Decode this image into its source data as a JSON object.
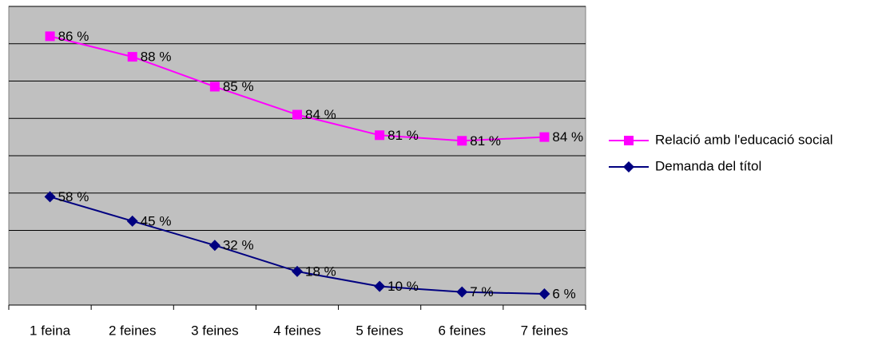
{
  "chart_data": {
    "type": "line",
    "stacked": true,
    "grid": true,
    "categories": [
      "1 feina",
      "2 feines",
      "3 feines",
      "4 feines",
      "5 feines",
      "6 feines",
      "7 feines"
    ],
    "series": [
      {
        "name": "Demanda del títol",
        "color": "#000080",
        "marker": "diamond",
        "values": [
          58,
          45,
          32,
          18,
          10,
          7,
          6
        ],
        "value_labels": [
          "58 %",
          "45 %",
          "32 %",
          "18 %",
          "10 %",
          "7 %",
          "6 %"
        ]
      },
      {
        "name": "Relació amb l'educació social",
        "color": "#ff00ff",
        "marker": "square",
        "values": [
          86,
          88,
          85,
          84,
          81,
          81,
          84
        ],
        "value_labels": [
          "86 %",
          "88 %",
          "85 %",
          "84 %",
          "81 %",
          "81 %",
          "84 %"
        ]
      }
    ],
    "ylim": [
      0,
      160
    ],
    "yticks": [
      0,
      20,
      40,
      60,
      80,
      100,
      120,
      140,
      160
    ],
    "legend": "right"
  }
}
